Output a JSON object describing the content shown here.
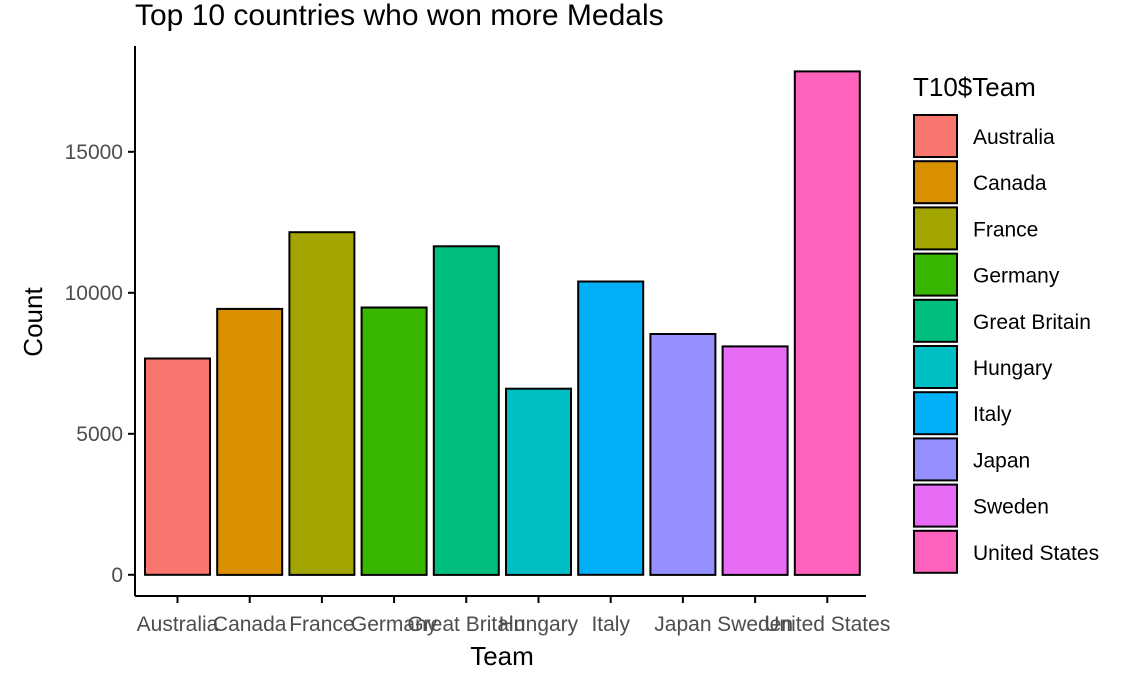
{
  "chart_data": {
    "type": "bar",
    "title": "Top 10 countries who won more Medals",
    "xlabel": "Team",
    "ylabel": "Count",
    "categories": [
      "Australia",
      "Canada",
      "France",
      "Germany",
      "Great Britain",
      "Hungary",
      "Italy",
      "Japan",
      "Sweden",
      "United States"
    ],
    "values": [
      7670,
      9430,
      12150,
      9480,
      11650,
      6600,
      10400,
      8540,
      8100,
      17850
    ],
    "colors": [
      "#F8766D",
      "#D89000",
      "#A3A500",
      "#39B600",
      "#00BF7D",
      "#00BFC4",
      "#00B0F6",
      "#9590FF",
      "#E76BF3",
      "#FF62BC"
    ],
    "ylim": [
      -750,
      18750
    ],
    "yticks": [
      0,
      5000,
      10000,
      15000
    ],
    "ytick_labels": [
      "0",
      "5000",
      "10000",
      "15000"
    ],
    "grid": false,
    "legend": {
      "title": "T10$Team",
      "position": "right",
      "entries": [
        "Australia",
        "Canada",
        "France",
        "Germany",
        "Great Britain",
        "Hungary",
        "Italy",
        "Japan",
        "Sweden",
        "United States"
      ]
    }
  }
}
